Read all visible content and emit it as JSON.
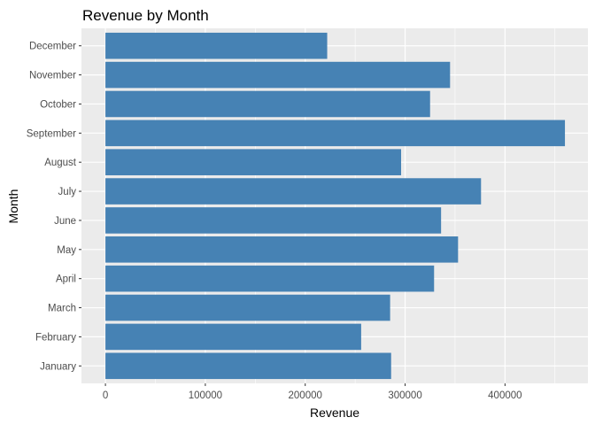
{
  "chart_data": {
    "type": "bar",
    "orientation": "horizontal",
    "title": "Revenue by Month",
    "xlabel": "Revenue",
    "ylabel": "Month",
    "categories": [
      "January",
      "February",
      "March",
      "April",
      "May",
      "June",
      "July",
      "August",
      "September",
      "October",
      "November",
      "December"
    ],
    "values": [
      286000,
      256000,
      285000,
      329000,
      353000,
      336000,
      376000,
      296000,
      460000,
      325000,
      345000,
      222000
    ],
    "xlim": [
      -24000,
      483000
    ],
    "xticks": [
      0,
      100000,
      200000,
      300000,
      400000
    ],
    "xtick_labels": [
      "0",
      "100000",
      "200000",
      "300000",
      "400000"
    ],
    "bar_color": "#4682b4",
    "panel_background": "#ebebeb",
    "grid_color": "#ffffff",
    "grid": true,
    "legend": "none"
  }
}
